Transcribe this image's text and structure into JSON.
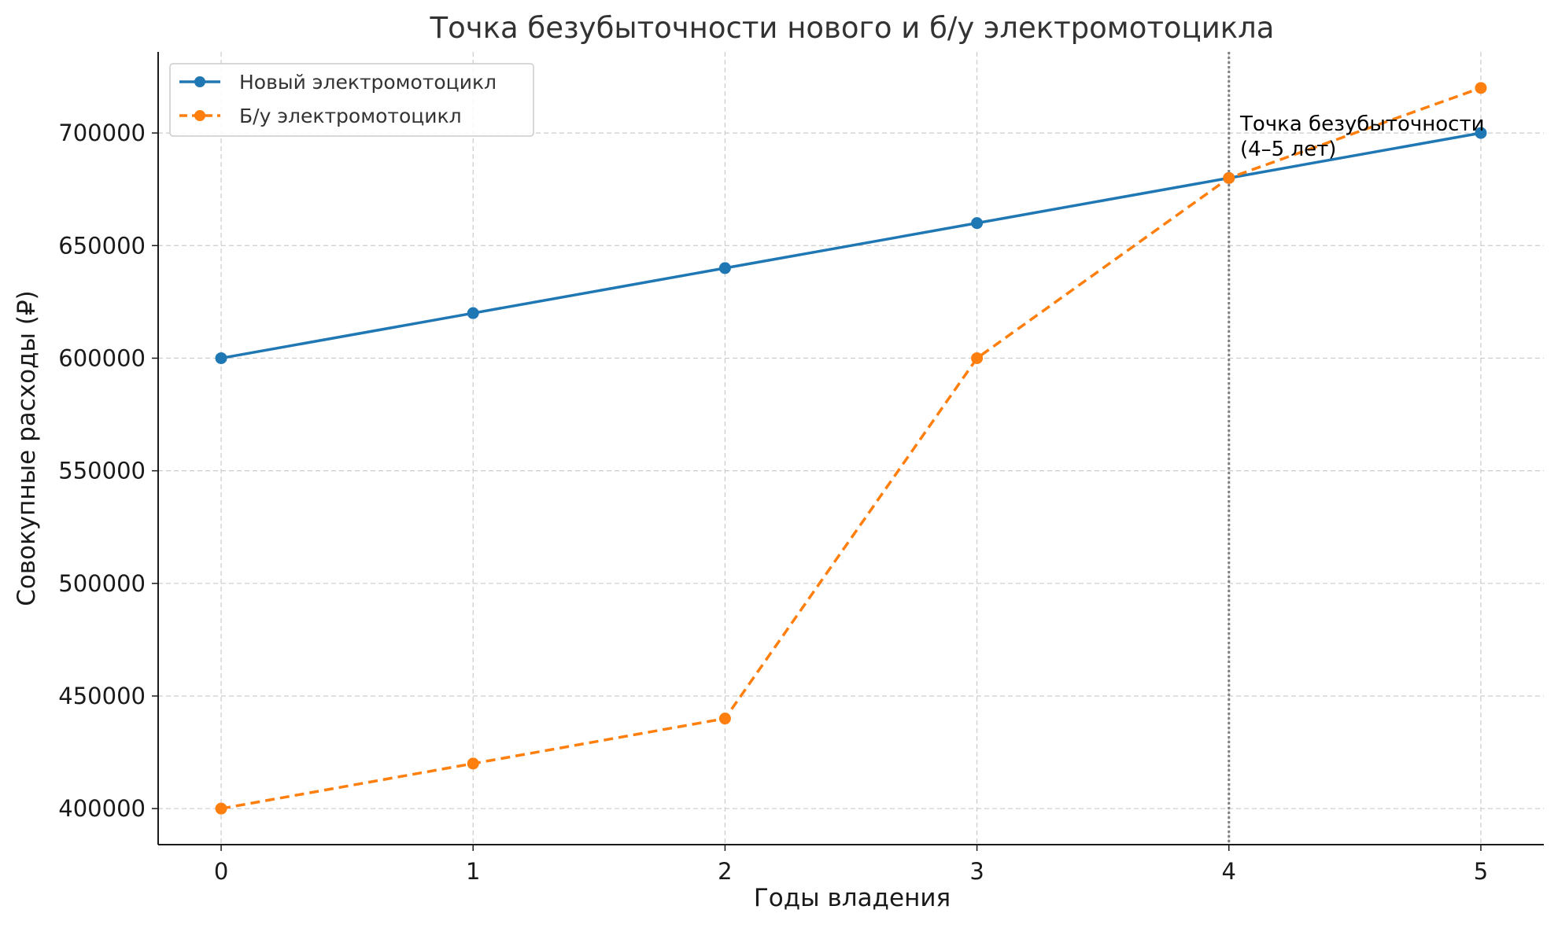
{
  "chart_data": {
    "type": "line",
    "title": "Точка безубыточности нового и б/у электромотоцикла",
    "xlabel": "Годы владения",
    "ylabel": "Совокупные расходы (₽)",
    "x": [
      0,
      1,
      2,
      3,
      4,
      5
    ],
    "xlim": [
      -0.25,
      5.25
    ],
    "ylim": [
      384000,
      736000
    ],
    "yticks": [
      400000,
      450000,
      500000,
      550000,
      600000,
      650000,
      700000
    ],
    "grid": true,
    "legend_position": "top-left",
    "series": [
      {
        "name": "Новый электромотоцикл",
        "values": [
          600000,
          620000,
          640000,
          660000,
          680000,
          700000
        ],
        "color": "#1f77b4",
        "line_style": "solid",
        "marker": "circle"
      },
      {
        "name": "Б/у электромотоцикл",
        "values": [
          400000,
          420000,
          440000,
          600000,
          680000,
          720000
        ],
        "color": "#ff7f0e",
        "line_style": "dashed",
        "marker": "circle"
      }
    ],
    "vline": {
      "x": 4,
      "color": "#808080",
      "style": "dotted"
    },
    "annotation": {
      "lines": [
        "Точка безубыточности",
        "(4–5 лет)"
      ],
      "x": 4.05,
      "y": 700000
    }
  }
}
